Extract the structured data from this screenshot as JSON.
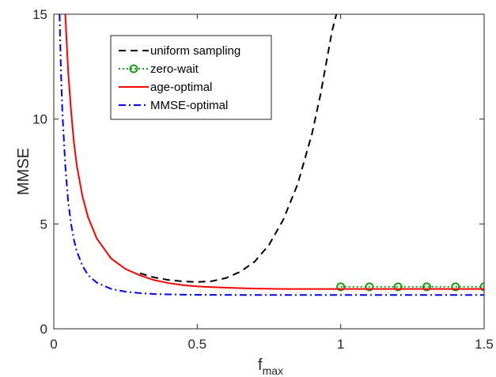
{
  "chart_data": {
    "type": "line",
    "xlabel": "f",
    "xlabel_subscript": "max",
    "ylabel": "MMSE",
    "xlim": [
      0,
      1.5
    ],
    "ylim": [
      0,
      15
    ],
    "xticks": [
      0,
      0.5,
      1,
      1.5
    ],
    "xtick_labels": [
      "0",
      "0.5",
      "1",
      "1.5"
    ],
    "yticks": [
      0,
      5,
      10,
      15
    ],
    "ytick_labels": [
      "0",
      "5",
      "10",
      "15"
    ],
    "grid": false,
    "legend_position": "top-center",
    "series": [
      {
        "name": "uniform sampling",
        "color": "#000000",
        "style": "dashed",
        "x": [
          0.3,
          0.35,
          0.4,
          0.45,
          0.5,
          0.55,
          0.6,
          0.65,
          0.7,
          0.75,
          0.8,
          0.85,
          0.9,
          0.93,
          0.95,
          0.97,
          0.985
        ],
        "y": [
          2.65,
          2.45,
          2.33,
          2.26,
          2.23,
          2.27,
          2.42,
          2.72,
          3.2,
          4.0,
          5.2,
          6.9,
          9.3,
          11.2,
          12.7,
          14.2,
          15.0
        ]
      },
      {
        "name": "zero-wait",
        "color": "#1a9e1a",
        "style": "dotted",
        "marker": "circle",
        "x": [
          1.0,
          1.1,
          1.2,
          1.3,
          1.4,
          1.5
        ],
        "y": [
          2.0,
          2.0,
          2.0,
          2.0,
          2.0,
          2.0
        ]
      },
      {
        "name": "age-optimal",
        "color": "#ff0000",
        "style": "solid",
        "x": [
          0.04,
          0.05,
          0.06,
          0.07,
          0.08,
          0.1,
          0.12,
          0.15,
          0.2,
          0.25,
          0.3,
          0.35,
          0.4,
          0.45,
          0.5,
          0.6,
          0.7,
          0.8,
          1.0,
          1.2,
          1.5
        ],
        "y": [
          15.0,
          12.3,
          10.4,
          8.9,
          7.8,
          6.3,
          5.3,
          4.3,
          3.35,
          2.85,
          2.55,
          2.32,
          2.18,
          2.08,
          2.02,
          1.96,
          1.92,
          1.9,
          1.9,
          1.9,
          1.9
        ]
      },
      {
        "name": "MMSE-optimal",
        "color": "#0000ff",
        "style": "dashdot",
        "x": [
          0.02,
          0.025,
          0.03,
          0.04,
          0.05,
          0.06,
          0.07,
          0.08,
          0.1,
          0.12,
          0.15,
          0.2,
          0.25,
          0.3,
          0.35,
          0.4,
          0.5,
          0.7,
          1.0,
          1.5
        ],
        "y": [
          15.0,
          12.2,
          10.3,
          7.8,
          6.1,
          5.0,
          4.25,
          3.7,
          3.0,
          2.55,
          2.2,
          1.9,
          1.77,
          1.7,
          1.66,
          1.64,
          1.62,
          1.61,
          1.61,
          1.61
        ]
      }
    ]
  }
}
